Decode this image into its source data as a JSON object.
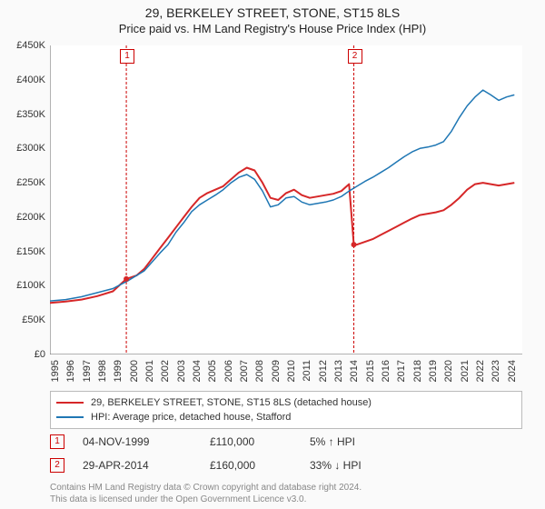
{
  "title": "29, BERKELEY STREET, STONE, ST15 8LS",
  "subtitle": "Price paid vs. HM Land Registry's House Price Index (HPI)",
  "chart": {
    "type": "line",
    "background_color": "#ffffff",
    "grid": false,
    "x": {
      "label": null,
      "years": [
        1995,
        1996,
        1997,
        1998,
        1999,
        2000,
        2001,
        2002,
        2003,
        2004,
        2005,
        2006,
        2007,
        2008,
        2009,
        2010,
        2011,
        2012,
        2013,
        2014,
        2015,
        2016,
        2017,
        2018,
        2019,
        2020,
        2021,
        2022,
        2023,
        2024
      ],
      "min": 1995,
      "max": 2025,
      "tick_fontsize": 11,
      "tick_rotation": -90
    },
    "y": {
      "label_prefix": "£",
      "ticks": [
        0,
        50,
        100,
        150,
        200,
        250,
        300,
        350,
        400,
        450
      ],
      "tick_labels": [
        "£0",
        "£50K",
        "£100K",
        "£150K",
        "£200K",
        "£250K",
        "£300K",
        "£350K",
        "£400K",
        "£450K"
      ],
      "min": 0,
      "max": 450,
      "tick_fontsize": 11
    },
    "series": [
      {
        "name": "29, BERKELEY STREET, STONE, ST15 8LS (detached house)",
        "color": "#d62728",
        "line_width": 2,
        "data": [
          [
            1995.0,
            75
          ],
          [
            1996.0,
            77
          ],
          [
            1997.0,
            80
          ],
          [
            1998.0,
            85
          ],
          [
            1999.0,
            92
          ],
          [
            1999.85,
            110
          ],
          [
            2000.5,
            115
          ],
          [
            2001.0,
            125
          ],
          [
            2001.5,
            140
          ],
          [
            2002.0,
            155
          ],
          [
            2002.5,
            170
          ],
          [
            2003.0,
            185
          ],
          [
            2003.5,
            200
          ],
          [
            2004.0,
            215
          ],
          [
            2004.5,
            228
          ],
          [
            2005.0,
            235
          ],
          [
            2005.5,
            240
          ],
          [
            2006.0,
            245
          ],
          [
            2006.5,
            255
          ],
          [
            2007.0,
            265
          ],
          [
            2007.5,
            272
          ],
          [
            2008.0,
            268
          ],
          [
            2008.5,
            250
          ],
          [
            2009.0,
            228
          ],
          [
            2009.5,
            225
          ],
          [
            2010.0,
            235
          ],
          [
            2010.5,
            240
          ],
          [
            2011.0,
            232
          ],
          [
            2011.5,
            228
          ],
          [
            2012.0,
            230
          ],
          [
            2012.5,
            232
          ],
          [
            2013.0,
            234
          ],
          [
            2013.5,
            238
          ],
          [
            2014.0,
            248
          ],
          [
            2014.3,
            160
          ],
          [
            2014.5,
            160
          ],
          [
            2015.0,
            164
          ],
          [
            2015.5,
            168
          ],
          [
            2016.0,
            174
          ],
          [
            2016.5,
            180
          ],
          [
            2017.0,
            186
          ],
          [
            2017.5,
            192
          ],
          [
            2018.0,
            198
          ],
          [
            2018.5,
            203
          ],
          [
            2019.0,
            205
          ],
          [
            2019.5,
            207
          ],
          [
            2020.0,
            210
          ],
          [
            2020.5,
            218
          ],
          [
            2021.0,
            228
          ],
          [
            2021.5,
            240
          ],
          [
            2022.0,
            248
          ],
          [
            2022.5,
            250
          ],
          [
            2023.0,
            248
          ],
          [
            2023.5,
            246
          ],
          [
            2024.0,
            248
          ],
          [
            2024.5,
            250
          ]
        ]
      },
      {
        "name": "HPI: Average price, detached house, Stafford",
        "color": "#1f77b4",
        "line_width": 1.5,
        "data": [
          [
            1995.0,
            78
          ],
          [
            1996.0,
            80
          ],
          [
            1997.0,
            84
          ],
          [
            1998.0,
            90
          ],
          [
            1999.0,
            96
          ],
          [
            2000.0,
            108
          ],
          [
            2001.0,
            122
          ],
          [
            2002.0,
            148
          ],
          [
            2002.5,
            160
          ],
          [
            2003.0,
            178
          ],
          [
            2003.5,
            192
          ],
          [
            2004.0,
            208
          ],
          [
            2004.5,
            218
          ],
          [
            2005.0,
            225
          ],
          [
            2005.5,
            232
          ],
          [
            2006.0,
            240
          ],
          [
            2006.5,
            250
          ],
          [
            2007.0,
            258
          ],
          [
            2007.5,
            262
          ],
          [
            2008.0,
            255
          ],
          [
            2008.5,
            238
          ],
          [
            2009.0,
            215
          ],
          [
            2009.5,
            218
          ],
          [
            2010.0,
            228
          ],
          [
            2010.5,
            230
          ],
          [
            2011.0,
            222
          ],
          [
            2011.5,
            218
          ],
          [
            2012.0,
            220
          ],
          [
            2012.5,
            222
          ],
          [
            2013.0,
            225
          ],
          [
            2013.5,
            230
          ],
          [
            2014.0,
            238
          ],
          [
            2014.5,
            245
          ],
          [
            2015.0,
            252
          ],
          [
            2015.5,
            258
          ],
          [
            2016.0,
            265
          ],
          [
            2016.5,
            272
          ],
          [
            2017.0,
            280
          ],
          [
            2017.5,
            288
          ],
          [
            2018.0,
            295
          ],
          [
            2018.5,
            300
          ],
          [
            2019.0,
            302
          ],
          [
            2019.5,
            305
          ],
          [
            2020.0,
            310
          ],
          [
            2020.5,
            325
          ],
          [
            2021.0,
            345
          ],
          [
            2021.5,
            362
          ],
          [
            2022.0,
            375
          ],
          [
            2022.5,
            385
          ],
          [
            2023.0,
            378
          ],
          [
            2023.5,
            370
          ],
          [
            2024.0,
            375
          ],
          [
            2024.5,
            378
          ]
        ]
      }
    ],
    "sale_markers": [
      {
        "n": "1",
        "x": 1999.85,
        "y": 110,
        "point_color": "#d62728"
      },
      {
        "n": "2",
        "x": 2014.3,
        "y": 160,
        "point_color": "#d62728"
      }
    ]
  },
  "legend": {
    "rows": [
      {
        "color": "#d62728",
        "label": "29, BERKELEY STREET, STONE, ST15 8LS (detached house)"
      },
      {
        "color": "#1f77b4",
        "label": "HPI: Average price, detached house, Stafford"
      }
    ]
  },
  "sales": [
    {
      "n": "1",
      "date": "04-NOV-1999",
      "price": "£110,000",
      "diff": "5% ↑ HPI"
    },
    {
      "n": "2",
      "date": "29-APR-2014",
      "price": "£160,000",
      "diff": "33% ↓ HPI"
    }
  ],
  "footnote": {
    "line1": "Contains HM Land Registry data © Crown copyright and database right 2024.",
    "line2": "This data is licensed under the Open Government Licence v3.0."
  }
}
